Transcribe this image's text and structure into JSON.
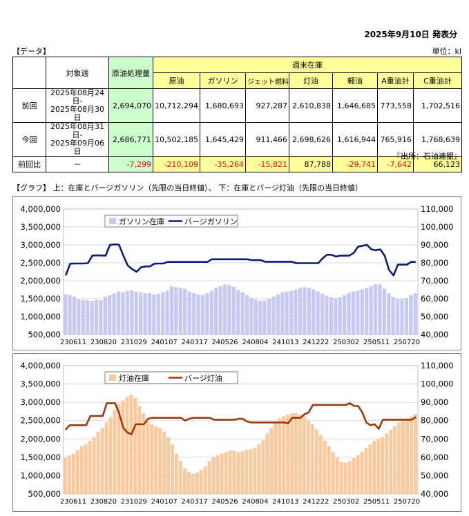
{
  "header": {
    "publish_date": "2025年9月10日 発表分",
    "data_label": "【データ】",
    "unit": "単位：kl",
    "source": "『出所：石油連盟』",
    "graph_label": "【グラフ】 上：在庫とバージガソリン（先限の当日終値）、 下：在庫とバージ灯油（先限の当日終値）"
  },
  "table": {
    "col_target": "対象週",
    "col_crude": "原油処理量",
    "col_weekly": "週末在庫",
    "stock_cols": [
      "原油",
      "ガソリン",
      "ジェット燃料",
      "灯油",
      "軽油",
      "A重油計",
      "C重油計"
    ],
    "rows": [
      {
        "label": "前回",
        "period_start": "2025年08月24日-",
        "period_end": "2025年08月30日",
        "crude": "2,694,070",
        "stocks": [
          "10,712,294",
          "1,680,693",
          "927,287",
          "2,610,838",
          "1,646,685",
          "773,558",
          "1,702,516"
        ]
      },
      {
        "label": "今回",
        "period_start": "2025年08月31日-",
        "period_end": "2025年09月06日",
        "crude": "2,686,771",
        "stocks": [
          "10,502,185",
          "1,645,429",
          "911,466",
          "2,698,626",
          "1,616,944",
          "765,916",
          "1,768,639"
        ]
      }
    ],
    "diff": {
      "label": "前回比",
      "period": "－",
      "crude": "-7,299",
      "stocks": [
        "-210,109",
        "-35,264",
        "-15,821",
        "87,788",
        "-29,741",
        "-7,642",
        "66,123"
      ]
    }
  },
  "colors": {
    "gasoline_bar": "#c8c8f5",
    "gasoline_line": "#0a1a80",
    "kerosene_bar": "#fcc99c",
    "kerosene_line": "#9a3a0a",
    "negative": "#ff0000",
    "yellow": "#ffff99",
    "green": "#ccffcc"
  },
  "chart_data": [
    {
      "type": "bar",
      "series": [
        {
          "name": "ガソリン在庫",
          "kind": "bar",
          "axis": "left",
          "values": [
            1620000,
            1600000,
            1560000,
            1480000,
            1460000,
            1450000,
            1440000,
            1470000,
            1460000,
            1550000,
            1600000,
            1650000,
            1700000,
            1680000,
            1720000,
            1730000,
            1700000,
            1680000,
            1650000,
            1660000,
            1620000,
            1640000,
            1680000,
            1720000,
            1850000,
            1820000,
            1800000,
            1780000,
            1700000,
            1660000,
            1620000,
            1600000,
            1650000,
            1720000,
            1800000,
            1850000,
            1900000,
            1880000,
            1830000,
            1750000,
            1680000,
            1600000,
            1520000,
            1470000,
            1440000,
            1450000,
            1500000,
            1560000,
            1620000,
            1680000,
            1700000,
            1720000,
            1760000,
            1800000,
            1820000,
            1800000,
            1760000,
            1700000,
            1640000,
            1580000,
            1540000,
            1520000,
            1540000,
            1600000,
            1660000,
            1700000,
            1720000,
            1760000,
            1800000,
            1850000,
            1900000,
            1900000,
            1780000,
            1650000,
            1550000,
            1500000,
            1490000,
            1520000,
            1600000,
            1650000
          ]
        },
        {
          "name": "バージガソリン",
          "kind": "line",
          "axis": "right",
          "values": [
            73000,
            79500,
            79600,
            79600,
            79600,
            79800,
            84000,
            84200,
            84100,
            84000,
            90000,
            90300,
            90100,
            84000,
            78500,
            76500,
            75000,
            77500,
            78000,
            78000,
            79500,
            79600,
            79600,
            80500,
            80500,
            80500,
            80500,
            80500,
            80500,
            80500,
            80500,
            80500,
            80500,
            82000,
            82000,
            82000,
            82000,
            82000,
            82000,
            82000,
            82000,
            82000,
            81500,
            81500,
            81500,
            80600,
            80600,
            80600,
            80600,
            80600,
            80600,
            80600,
            79800,
            79800,
            79800,
            79800,
            79800,
            79800,
            82500,
            84500,
            84500,
            83500,
            84000,
            84000,
            84000,
            85500,
            89000,
            89500,
            90000,
            87500,
            87000,
            87500,
            84000,
            76000,
            73000,
            79000,
            79000,
            79000,
            80500,
            80500
          ]
        }
      ],
      "x_tick_labels": [
        "230611",
        "230820",
        "231029",
        "240107",
        "240317",
        "240526",
        "240804",
        "241013",
        "241222",
        "250302",
        "250511",
        "250720"
      ],
      "ylim_left": [
        500000,
        4000000
      ],
      "ylim_right": [
        40000,
        110000
      ],
      "y_ticks_left": [
        "500,000",
        "1,000,000",
        "1,500,000",
        "2,000,000",
        "2,500,000",
        "3,000,000",
        "3,500,000",
        "4,000,000"
      ],
      "y_ticks_right": [
        "40,000",
        "50,000",
        "60,000",
        "70,000",
        "80,000",
        "90,000",
        "100,000",
        "110,000"
      ],
      "legend_position": "top-left",
      "grid": true
    },
    {
      "type": "bar",
      "series": [
        {
          "name": "灯油在庫",
          "kind": "bar",
          "axis": "left",
          "values": [
            1500000,
            1550000,
            1600000,
            1700000,
            1800000,
            1850000,
            1950000,
            2050000,
            2200000,
            2300000,
            2450000,
            2600000,
            2800000,
            2950000,
            3050000,
            3150000,
            3200000,
            3120000,
            2900000,
            2700000,
            2500000,
            2400000,
            2350000,
            2300000,
            2200000,
            2050000,
            1850000,
            1600000,
            1400000,
            1200000,
            1100000,
            1050000,
            1080000,
            1150000,
            1250000,
            1400000,
            1500000,
            1560000,
            1600000,
            1640000,
            1680000,
            1680000,
            1640000,
            1660000,
            1700000,
            1720000,
            1760000,
            1860000,
            1960000,
            2150000,
            2300000,
            2460000,
            2560000,
            2620000,
            2660000,
            2700000,
            2700000,
            2660000,
            2620000,
            2520000,
            2400000,
            2260000,
            2100000,
            1950000,
            1800000,
            1650000,
            1500000,
            1380000,
            1350000,
            1400000,
            1480000,
            1560000,
            1650000,
            1750000,
            1850000,
            1950000,
            2000000,
            2050000,
            2150000,
            2250000,
            2350000,
            2450000,
            2520000,
            2560000,
            2620000,
            2680000
          ]
        },
        {
          "name": "バージ灯油",
          "kind": "line",
          "axis": "right",
          "values": [
            75000,
            77500,
            77500,
            77500,
            77500,
            77500,
            82500,
            82500,
            82500,
            82500,
            89500,
            89500,
            89500,
            84000,
            76000,
            73500,
            72500,
            78000,
            78000,
            78000,
            81000,
            81500,
            81500,
            81500,
            81500,
            81500,
            81500,
            81500,
            81500,
            80000,
            81000,
            81500,
            81500,
            81500,
            81500,
            81500,
            80500,
            80500,
            80500,
            80500,
            80500,
            80500,
            81000,
            81000,
            79500,
            79000,
            79000,
            79000,
            79000,
            79000,
            79000,
            79000,
            79000,
            79000,
            78500,
            81500,
            81500,
            81500,
            83500,
            84500,
            88500,
            88500,
            88500,
            88500,
            88500,
            88500,
            88500,
            88500,
            88500,
            89500,
            88000,
            88000,
            84500,
            79000,
            77500,
            78000,
            75500,
            80500,
            80500,
            80500,
            80500,
            80500,
            80500,
            80500,
            80500,
            82000
          ]
        }
      ],
      "x_tick_labels": [
        "230611",
        "230820",
        "231029",
        "240107",
        "240317",
        "240526",
        "240804",
        "241013",
        "241222",
        "250302",
        "250511",
        "250720"
      ],
      "ylim_left": [
        500000,
        4000000
      ],
      "ylim_right": [
        40000,
        110000
      ],
      "y_ticks_left": [
        "500,000",
        "1,000,000",
        "1,500,000",
        "2,000,000",
        "2,500,000",
        "3,000,000",
        "3,500,000",
        "4,000,000"
      ],
      "y_ticks_right": [
        "40,000",
        "50,000",
        "60,000",
        "70,000",
        "80,000",
        "90,000",
        "100,000",
        "110,000"
      ],
      "legend_position": "top-left",
      "grid": true
    }
  ]
}
